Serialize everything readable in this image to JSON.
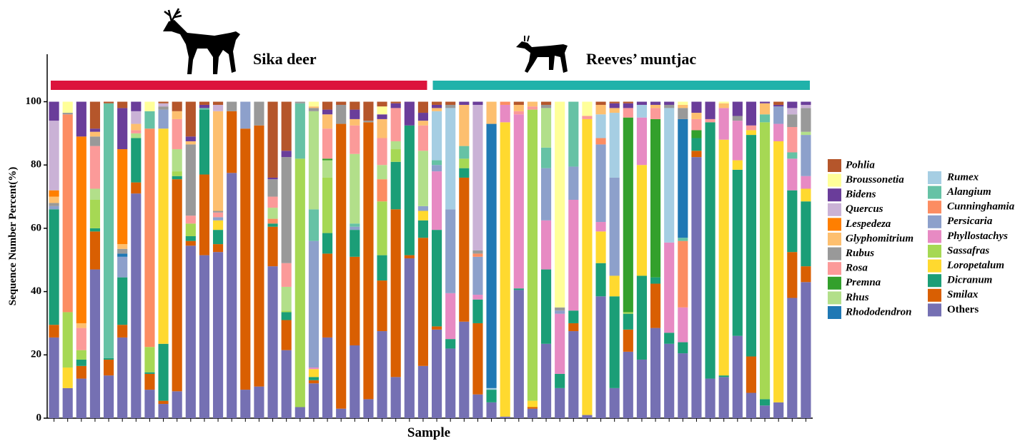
{
  "chart_data": {
    "type": "stacked_bar",
    "ylabel": "Sequence Number Percent(%)",
    "xlabel": "Sample",
    "ylim": [
      0,
      115
    ],
    "yticks": [
      0,
      20,
      40,
      60,
      80,
      100
    ],
    "groups": [
      {
        "name": "Sika deer",
        "color": "#dc143c",
        "size": 28
      },
      {
        "name": "Reeves’ muntjac",
        "color": "#20b2aa",
        "size": 28
      }
    ],
    "series": [
      {
        "name": "Others",
        "color": "#7570b3",
        "values": [
          25.5,
          9.5,
          12.5,
          47,
          13.5,
          25.5,
          71,
          9,
          4.5,
          8.5,
          54.5,
          51.5,
          52.5,
          77.5,
          9,
          10,
          48,
          21.5,
          3.5,
          11,
          25.5,
          3,
          23,
          6,
          27.5,
          13,
          50.5,
          16.5,
          28,
          22,
          30.5,
          7.5,
          5,
          0.5,
          40.5,
          3,
          23.5,
          9.5,
          27.5,
          1,
          38.5,
          9.5,
          21,
          18.5,
          28.5,
          23.5,
          20.5,
          82.5,
          12.5,
          13,
          26,
          8,
          4,
          5,
          38,
          43
        ]
      },
      {
        "name": "Smilax",
        "color": "#d95f02",
        "values": [
          4,
          0,
          4,
          12,
          5,
          4,
          3.5,
          5,
          1,
          67,
          1.5,
          25.5,
          2.5,
          19.5,
          82.5,
          82.5,
          12.5,
          9.5,
          0,
          1,
          26.5,
          90,
          28,
          87.5,
          16,
          53,
          1,
          40.5,
          1,
          0,
          45.5,
          22.5,
          0,
          0,
          0,
          0.5,
          0,
          0,
          2.5,
          0,
          0,
          0,
          7,
          0,
          14,
          0,
          0,
          2,
          0,
          0,
          0,
          11.5,
          0,
          0,
          14.5,
          5
        ]
      },
      {
        "name": "Dicranum",
        "color": "#1b9e77",
        "values": [
          36.5,
          0,
          2,
          1,
          0.5,
          15,
          14,
          0.5,
          18,
          1,
          1.5,
          20.5,
          4.5,
          0,
          0,
          0,
          1,
          2.5,
          0,
          1,
          6.5,
          0,
          8.5,
          0,
          8,
          15,
          41,
          5.5,
          30.5,
          3,
          3,
          7.5,
          4,
          0,
          0.5,
          0,
          23.5,
          4.5,
          4,
          0,
          10.5,
          29,
          5,
          26.5,
          2,
          3.5,
          3.5,
          4,
          81,
          0.5,
          52.5,
          70,
          2,
          0,
          19.5,
          20.5
        ]
      },
      {
        "name": "Loropetalum",
        "color": "#ffd92f",
        "values": [
          0,
          6.5,
          0,
          0,
          0,
          0,
          0,
          0,
          68,
          0,
          0,
          0,
          3,
          0,
          0,
          0,
          0,
          0,
          0,
          2.5,
          0,
          0,
          0,
          0,
          0,
          0,
          0,
          3,
          0,
          0,
          0,
          0,
          0,
          93,
          0,
          2,
          0,
          0,
          0,
          93.5,
          10,
          6.5,
          0,
          35,
          0,
          0,
          0,
          0,
          0,
          74.5,
          3,
          1.5,
          0,
          82.5,
          0,
          4
        ]
      },
      {
        "name": "Sassafras",
        "color": "#a6d854",
        "values": [
          0,
          17.5,
          3,
          9,
          0,
          0,
          0,
          8,
          0,
          1.5,
          4,
          0,
          0,
          0,
          0,
          0,
          0,
          0.5,
          78.5,
          0,
          17.5,
          0,
          0,
          0,
          17,
          4,
          0,
          0,
          0,
          0,
          3,
          0,
          0,
          0,
          0,
          92,
          0,
          0,
          0,
          0,
          0,
          0,
          0.5,
          0,
          0,
          0,
          0,
          0,
          0,
          0,
          0,
          0,
          87.5,
          0,
          0,
          0
        ]
      },
      {
        "name": "Phyllostachys",
        "color": "#e78ac3",
        "values": [
          0,
          0,
          0,
          0,
          0,
          0,
          0,
          0,
          0,
          0,
          0,
          0,
          0,
          0,
          0,
          0,
          0,
          0,
          0,
          0.5,
          0,
          0,
          0,
          0,
          0,
          0,
          0,
          0,
          18.5,
          14.5,
          0,
          1.5,
          0,
          5.5,
          55,
          0,
          15.5,
          19,
          35,
          0,
          3,
          0,
          0,
          15,
          0,
          28.5,
          11,
          0,
          0,
          10,
          12.5,
          0,
          0,
          5.5,
          10,
          4
        ]
      },
      {
        "name": "Persicaria",
        "color": "#8da0cb",
        "values": [
          1,
          0,
          0,
          0,
          0,
          6.5,
          0,
          0,
          6,
          0,
          0,
          0,
          1,
          0,
          8.5,
          0,
          0,
          0,
          0,
          40,
          0,
          0,
          1,
          0,
          0,
          0,
          0,
          1.5,
          2,
          26.5,
          0,
          12,
          0,
          0,
          0,
          0,
          16.5,
          1,
          10.5,
          0,
          24.5,
          31,
          0,
          0,
          0,
          0,
          0,
          0,
          0,
          0,
          0,
          0,
          0,
          5.5,
          0,
          13
        ]
      },
      {
        "name": "Cunninghamia",
        "color": "#fc8d62",
        "values": [
          0,
          62.5,
          0,
          0,
          0,
          0,
          0,
          69,
          0,
          0,
          0,
          0,
          0,
          0,
          0,
          0,
          1.5,
          0,
          0,
          0,
          0,
          0,
          0,
          0,
          7,
          0,
          0,
          0,
          0,
          0,
          0,
          1,
          0,
          1,
          0,
          0,
          0,
          0,
          0,
          0,
          2,
          0,
          0,
          0,
          0,
          0,
          21,
          0,
          0,
          0,
          0,
          0,
          0,
          0,
          0,
          0
        ]
      },
      {
        "name": "Alangium",
        "color": "#66c2a5",
        "values": [
          0,
          0,
          0,
          0,
          80.5,
          0,
          0,
          5.5,
          0,
          0,
          0,
          0.5,
          0,
          0,
          0,
          0,
          0,
          0,
          17.5,
          10,
          0,
          0,
          1,
          0,
          0,
          0,
          0,
          0,
          1.5,
          0,
          4,
          0,
          0,
          0,
          0,
          0,
          6.5,
          0,
          20.5,
          0,
          0,
          0,
          0,
          0,
          0,
          0,
          1,
          0,
          0,
          0,
          0,
          0,
          2.5,
          0,
          2,
          0
        ]
      },
      {
        "name": "Rumex",
        "color": "#a6cee3",
        "values": [
          0,
          0,
          0,
          0,
          0,
          0,
          0,
          0,
          0,
          0,
          0,
          0,
          0,
          0,
          0,
          0,
          0,
          0,
          0,
          0,
          0,
          0,
          0,
          0,
          0,
          0,
          0,
          0,
          15.5,
          32,
          0,
          0,
          0.5,
          0,
          0,
          0,
          0,
          0,
          0,
          0,
          7.5,
          20.5,
          0,
          4,
          0,
          42.5,
          0,
          0,
          0,
          0,
          0,
          0,
          0,
          0,
          0,
          0
        ]
      },
      {
        "name": "Rhododendron",
        "color": "#1f78b4",
        "values": [
          0,
          0,
          0,
          0,
          0,
          1,
          0,
          0,
          0,
          0,
          0,
          0,
          0,
          0,
          0,
          0,
          0,
          0,
          0,
          0,
          0,
          0,
          0,
          0,
          0,
          0,
          0,
          0,
          0,
          0,
          0,
          0,
          83.5,
          0,
          0,
          0,
          0,
          0,
          0,
          0,
          0,
          0,
          0,
          0,
          0,
          0,
          37.5,
          0,
          0,
          0,
          0,
          0,
          0,
          0,
          0,
          0
        ]
      },
      {
        "name": "Rhus",
        "color": "#b2df8a",
        "values": [
          0,
          0,
          0,
          3.5,
          0,
          0,
          1.5,
          0,
          0,
          7,
          0,
          0,
          0,
          0,
          0,
          0,
          3.5,
          7.5,
          0,
          31,
          5.5,
          0,
          22,
          0,
          4.5,
          2.5,
          0,
          17.5,
          0,
          0,
          0,
          0,
          0,
          0,
          0,
          0,
          12.5,
          0,
          0,
          0,
          0,
          0,
          0,
          0,
          0,
          0,
          0,
          0,
          0,
          0,
          0,
          0,
          0,
          0,
          0,
          1
        ]
      },
      {
        "name": "Premna",
        "color": "#33a02c",
        "values": [
          0,
          0,
          0,
          0,
          0,
          0,
          0,
          0,
          0,
          0,
          0,
          0,
          0,
          0,
          0,
          0,
          0,
          0,
          0,
          0,
          0.5,
          0,
          0,
          0,
          0,
          0,
          0,
          0,
          0,
          0,
          0,
          0,
          0,
          0,
          0,
          0,
          0,
          0,
          0,
          0,
          0,
          0,
          61.5,
          0,
          50,
          0,
          0,
          2.5,
          0,
          0,
          0,
          0,
          0,
          0,
          0,
          0
        ]
      },
      {
        "name": "Rosa",
        "color": "#fb9a99",
        "values": [
          0,
          0,
          7,
          13.5,
          0,
          0,
          1,
          0,
          0,
          9.5,
          2.5,
          0,
          1.5,
          0,
          0,
          0,
          3.5,
          7.5,
          0,
          0,
          9.5,
          0,
          9,
          0,
          8.5,
          10.5,
          0,
          8,
          0,
          0,
          0,
          0,
          0,
          0,
          1,
          1,
          0,
          0,
          0,
          1,
          0,
          0,
          3,
          0,
          3.5,
          0,
          0,
          3.5,
          1,
          0,
          0,
          1.5,
          0,
          0,
          8,
          0
        ]
      },
      {
        "name": "Rubus",
        "color": "#999999",
        "values": [
          1,
          0.5,
          0,
          3,
          0,
          1.5,
          0,
          0,
          1,
          0,
          22.5,
          0,
          0.5,
          3,
          0,
          7.5,
          5.5,
          33.5,
          0.5,
          1,
          0,
          6,
          0,
          0.5,
          0,
          0,
          0,
          0,
          0,
          1,
          0,
          1,
          0,
          0,
          0,
          0,
          1,
          1,
          0,
          0,
          0,
          0,
          0,
          0,
          0,
          1,
          3.5,
          0,
          0,
          0,
          1.5,
          0,
          0,
          0,
          4,
          7.5
        ]
      },
      {
        "name": "Glyphomitrium",
        "color": "#fdbf6f",
        "values": [
          2,
          0,
          1.5,
          1.5,
          0,
          1.5,
          2,
          0,
          0,
          2.5,
          1,
          0,
          31.5,
          0,
          0,
          0,
          0,
          0,
          0,
          0.5,
          4.5,
          0,
          2,
          0,
          6,
          0,
          0,
          1.5,
          1,
          0,
          13,
          0,
          7,
          0,
          2,
          1.5,
          0,
          0,
          0,
          0,
          3,
          1.5,
          0,
          0,
          1,
          0,
          1,
          2,
          0,
          1.5,
          0,
          0,
          3.5,
          0,
          0,
          0
        ]
      },
      {
        "name": "Lespedeza",
        "color": "#ff7f00",
        "values": [
          2,
          0,
          59,
          0,
          0,
          30,
          0,
          0,
          0,
          0,
          0,
          0,
          0,
          0,
          0,
          0,
          0,
          0,
          0,
          0,
          0,
          0,
          0,
          0,
          0,
          0,
          0,
          0,
          0,
          0,
          0,
          0,
          0,
          0,
          0,
          0,
          0,
          0,
          0,
          0,
          0,
          0,
          0,
          0,
          0,
          0,
          0,
          0,
          0,
          0,
          0,
          0,
          0,
          0,
          0,
          0
        ]
      },
      {
        "name": "Quercus",
        "color": "#cab2d6",
        "values": [
          22,
          0,
          0,
          0,
          0,
          0,
          4,
          0,
          1,
          0,
          0,
          0,
          2,
          0,
          0,
          0,
          0,
          0,
          0,
          0,
          0,
          0,
          0,
          0,
          0,
          0,
          0,
          0,
          0,
          0,
          0,
          46,
          0,
          0,
          0,
          0,
          0,
          0,
          0,
          0,
          0,
          0,
          0,
          0,
          0,
          0,
          0,
          0,
          0,
          0,
          0,
          0,
          0,
          0,
          2,
          1
        ]
      },
      {
        "name": "Bidens",
        "color": "#6a3d9a",
        "values": [
          6,
          0,
          11,
          1,
          0,
          13,
          3,
          0,
          0,
          0,
          1.5,
          1,
          0,
          0,
          0,
          0,
          0.5,
          2,
          0,
          0,
          1.5,
          0,
          3,
          0,
          1.5,
          1.5,
          7.5,
          2.5,
          1,
          0,
          1,
          1,
          0,
          0,
          0,
          0,
          0,
          0,
          0,
          0,
          0,
          1.5,
          1.5,
          1,
          1,
          1,
          0,
          3.5,
          5.5,
          0,
          4.5,
          7.5,
          0.5,
          0.5,
          2,
          1
        ]
      },
      {
        "name": "Broussonetia",
        "color": "#ffff99",
        "values": [
          0,
          3.5,
          0,
          0,
          0,
          0,
          0,
          3,
          0,
          0,
          0,
          0,
          0,
          0,
          0,
          0,
          0,
          0,
          0,
          1.5,
          0,
          0,
          0,
          0,
          2.5,
          0,
          0,
          0,
          0,
          0,
          0,
          0,
          0,
          0,
          0,
          0,
          0,
          65,
          0,
          4.5,
          0,
          0,
          0,
          0,
          0,
          0,
          1,
          0,
          0,
          0.5,
          0,
          0,
          0,
          0,
          0,
          0
        ]
      },
      {
        "name": "Pohlia",
        "color": "#b5562b",
        "values": [
          0,
          0,
          0,
          8.5,
          0.5,
          2,
          0,
          0,
          0.5,
          3,
          11,
          1,
          1,
          0,
          0,
          0,
          24,
          15.5,
          0,
          0,
          2.5,
          1,
          2.5,
          6,
          1.5,
          0.5,
          0,
          3.5,
          1,
          1,
          0,
          0,
          0,
          0,
          1,
          0,
          1,
          0,
          0,
          0,
          1,
          0.5,
          0.5,
          0,
          0,
          0,
          0,
          0,
          0,
          0,
          0,
          0,
          0,
          1,
          0,
          0
        ]
      }
    ]
  }
}
